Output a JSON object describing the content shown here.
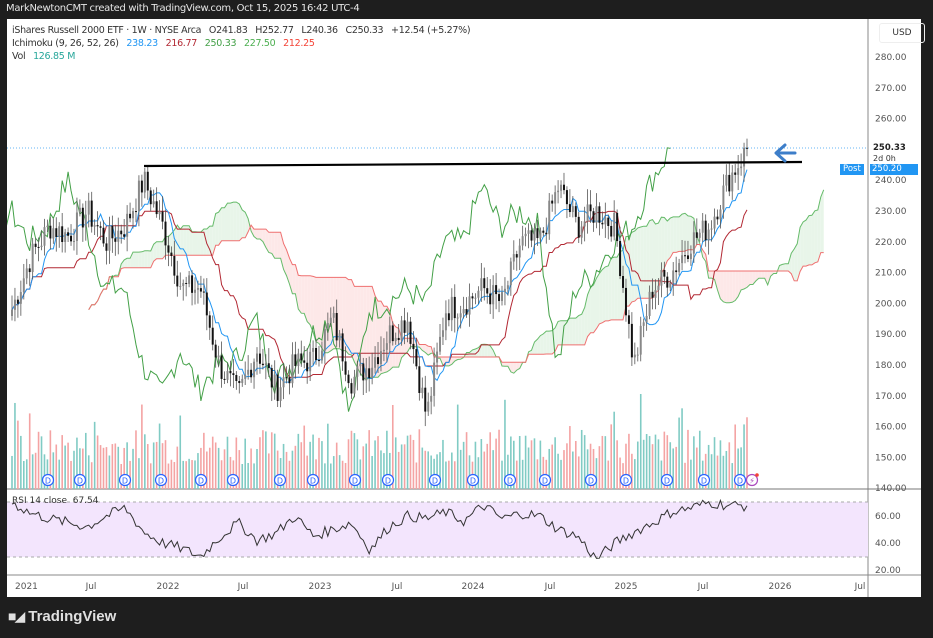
{
  "header": {
    "attribution": "MarkNewtonCMT created with TradingView.com, Oct 15, 2025 16:42 UTC-4"
  },
  "legend": {
    "symbol_line": {
      "title": "iShares Russell 2000 ETF · 1W · NYSE Arca",
      "open_label": "O",
      "open": "241.83",
      "high_label": "H",
      "high": "252.77",
      "low_label": "L",
      "low": "240.36",
      "close_label": "C",
      "close": "250.33",
      "change": "+12.54 (+5.27%)"
    },
    "ichimoku": {
      "label": "Ichimoku (9, 26, 52, 26)",
      "values": [
        {
          "value": "238.23",
          "color": "#2196f3"
        },
        {
          "value": "216.77",
          "color": "#b22833"
        },
        {
          "value": "250.33",
          "color": "#43a047"
        },
        {
          "value": "227.50",
          "color": "#4caf50"
        },
        {
          "value": "212.25",
          "color": "#f44336"
        }
      ]
    },
    "volume": {
      "label": "Vol",
      "value": "126.85 M",
      "color": "#26a69a"
    }
  },
  "price_axis": {
    "currency": "USD",
    "ticks": [
      "280.00",
      "270.00",
      "260.00",
      "250.00",
      "240.00",
      "230.00",
      "220.00",
      "210.00",
      "200.00",
      "190.00",
      "180.00",
      "170.00",
      "160.00",
      "150.00",
      "140.00"
    ],
    "last_price": "250.33",
    "countdown": "2d 0h",
    "post_label": "Post",
    "post_price": "250.20"
  },
  "rsi": {
    "label": "RSI 14 close",
    "value": "67.54",
    "ticks": [
      "60.00",
      "40.00",
      "20.00"
    ],
    "upper_band": 70,
    "lower_band": 30
  },
  "time_axis": {
    "ticks": [
      "2021",
      "Jul",
      "2022",
      "Jul",
      "2023",
      "Jul",
      "2024",
      "Jul",
      "2025",
      "Jul",
      "2026",
      "Jul"
    ]
  },
  "branding": {
    "logo_text": "TradingView"
  },
  "colors": {
    "tenkan": "#2196f3",
    "kijun": "#b22833",
    "chikou": "#43a047",
    "senkou_a": "#4caf50",
    "senkou_b": "#f44336",
    "cloud_bull": "#e8f5e9",
    "cloud_bear": "#fde8e8",
    "vol_up": "#80cbc4",
    "vol_down": "#f4a3a3",
    "rsi_band": "#f3e5fd",
    "resistance_line": "#000000",
    "arrow": "#3d7ec9",
    "post_badge": "#2196f3"
  },
  "annotations": {
    "resistance_level": 245,
    "arrow_direction": "left"
  },
  "chart_data": {
    "type": "candlestick",
    "title": "iShares Russell 2000 ETF (IWM) · 1W · NYSE Arca",
    "xlabel": "",
    "ylabel": "USD",
    "ylim": [
      140,
      285
    ],
    "x_range": [
      "2021",
      "Jul 2026"
    ],
    "grid": false,
    "indicators": [
      "Ichimoku (9, 26, 52, 26)",
      "Volume",
      "RSI (14, close)"
    ],
    "ohlc_last": {
      "open": 241.83,
      "high": 252.77,
      "low": 240.36,
      "close": 250.33,
      "change": 12.54,
      "change_pct": 5.27
    },
    "approx_close_path": {
      "dates": [
        "2021-01",
        "2021-02",
        "2021-03",
        "2021-04",
        "2021-06",
        "2021-08",
        "2021-10",
        "2021-11",
        "2021-12",
        "2022-01",
        "2022-03",
        "2022-05",
        "2022-06",
        "2022-08",
        "2022-09",
        "2022-10",
        "2022-12",
        "2023-02",
        "2023-03",
        "2023-05",
        "2023-07",
        "2023-08",
        "2023-10",
        "2023-12",
        "2024-02",
        "2024-04",
        "2024-06",
        "2024-07",
        "2024-09",
        "2024-11",
        "2024-12",
        "2025-01",
        "2025-02",
        "2025-04",
        "2025-05",
        "2025-06",
        "2025-07",
        "2025-08",
        "2025-09",
        "2025-10"
      ],
      "close": [
        198,
        215,
        225,
        222,
        230,
        220,
        225,
        240,
        225,
        205,
        205,
        180,
        170,
        185,
        172,
        180,
        182,
        195,
        175,
        180,
        190,
        195,
        163,
        198,
        200,
        205,
        200,
        220,
        220,
        238,
        225,
        230,
        225,
        180,
        205,
        210,
        220,
        225,
        240,
        250
      ]
    },
    "resistance_line": {
      "level": 245,
      "from": "2021-11",
      "to": "2025-10"
    },
    "volume_latest_M": 126.85,
    "rsi": {
      "ylim": [
        15,
        80
      ],
      "bands": [
        30,
        70
      ],
      "latest": 67.54,
      "min_approx": 27,
      "min_date": "2025-04"
    },
    "ichimoku_latest": {
      "tenkan": 238.23,
      "kijun": 216.77,
      "chikou": 250.33,
      "senkou_a": 227.5,
      "senkou_b": 212.25
    }
  }
}
